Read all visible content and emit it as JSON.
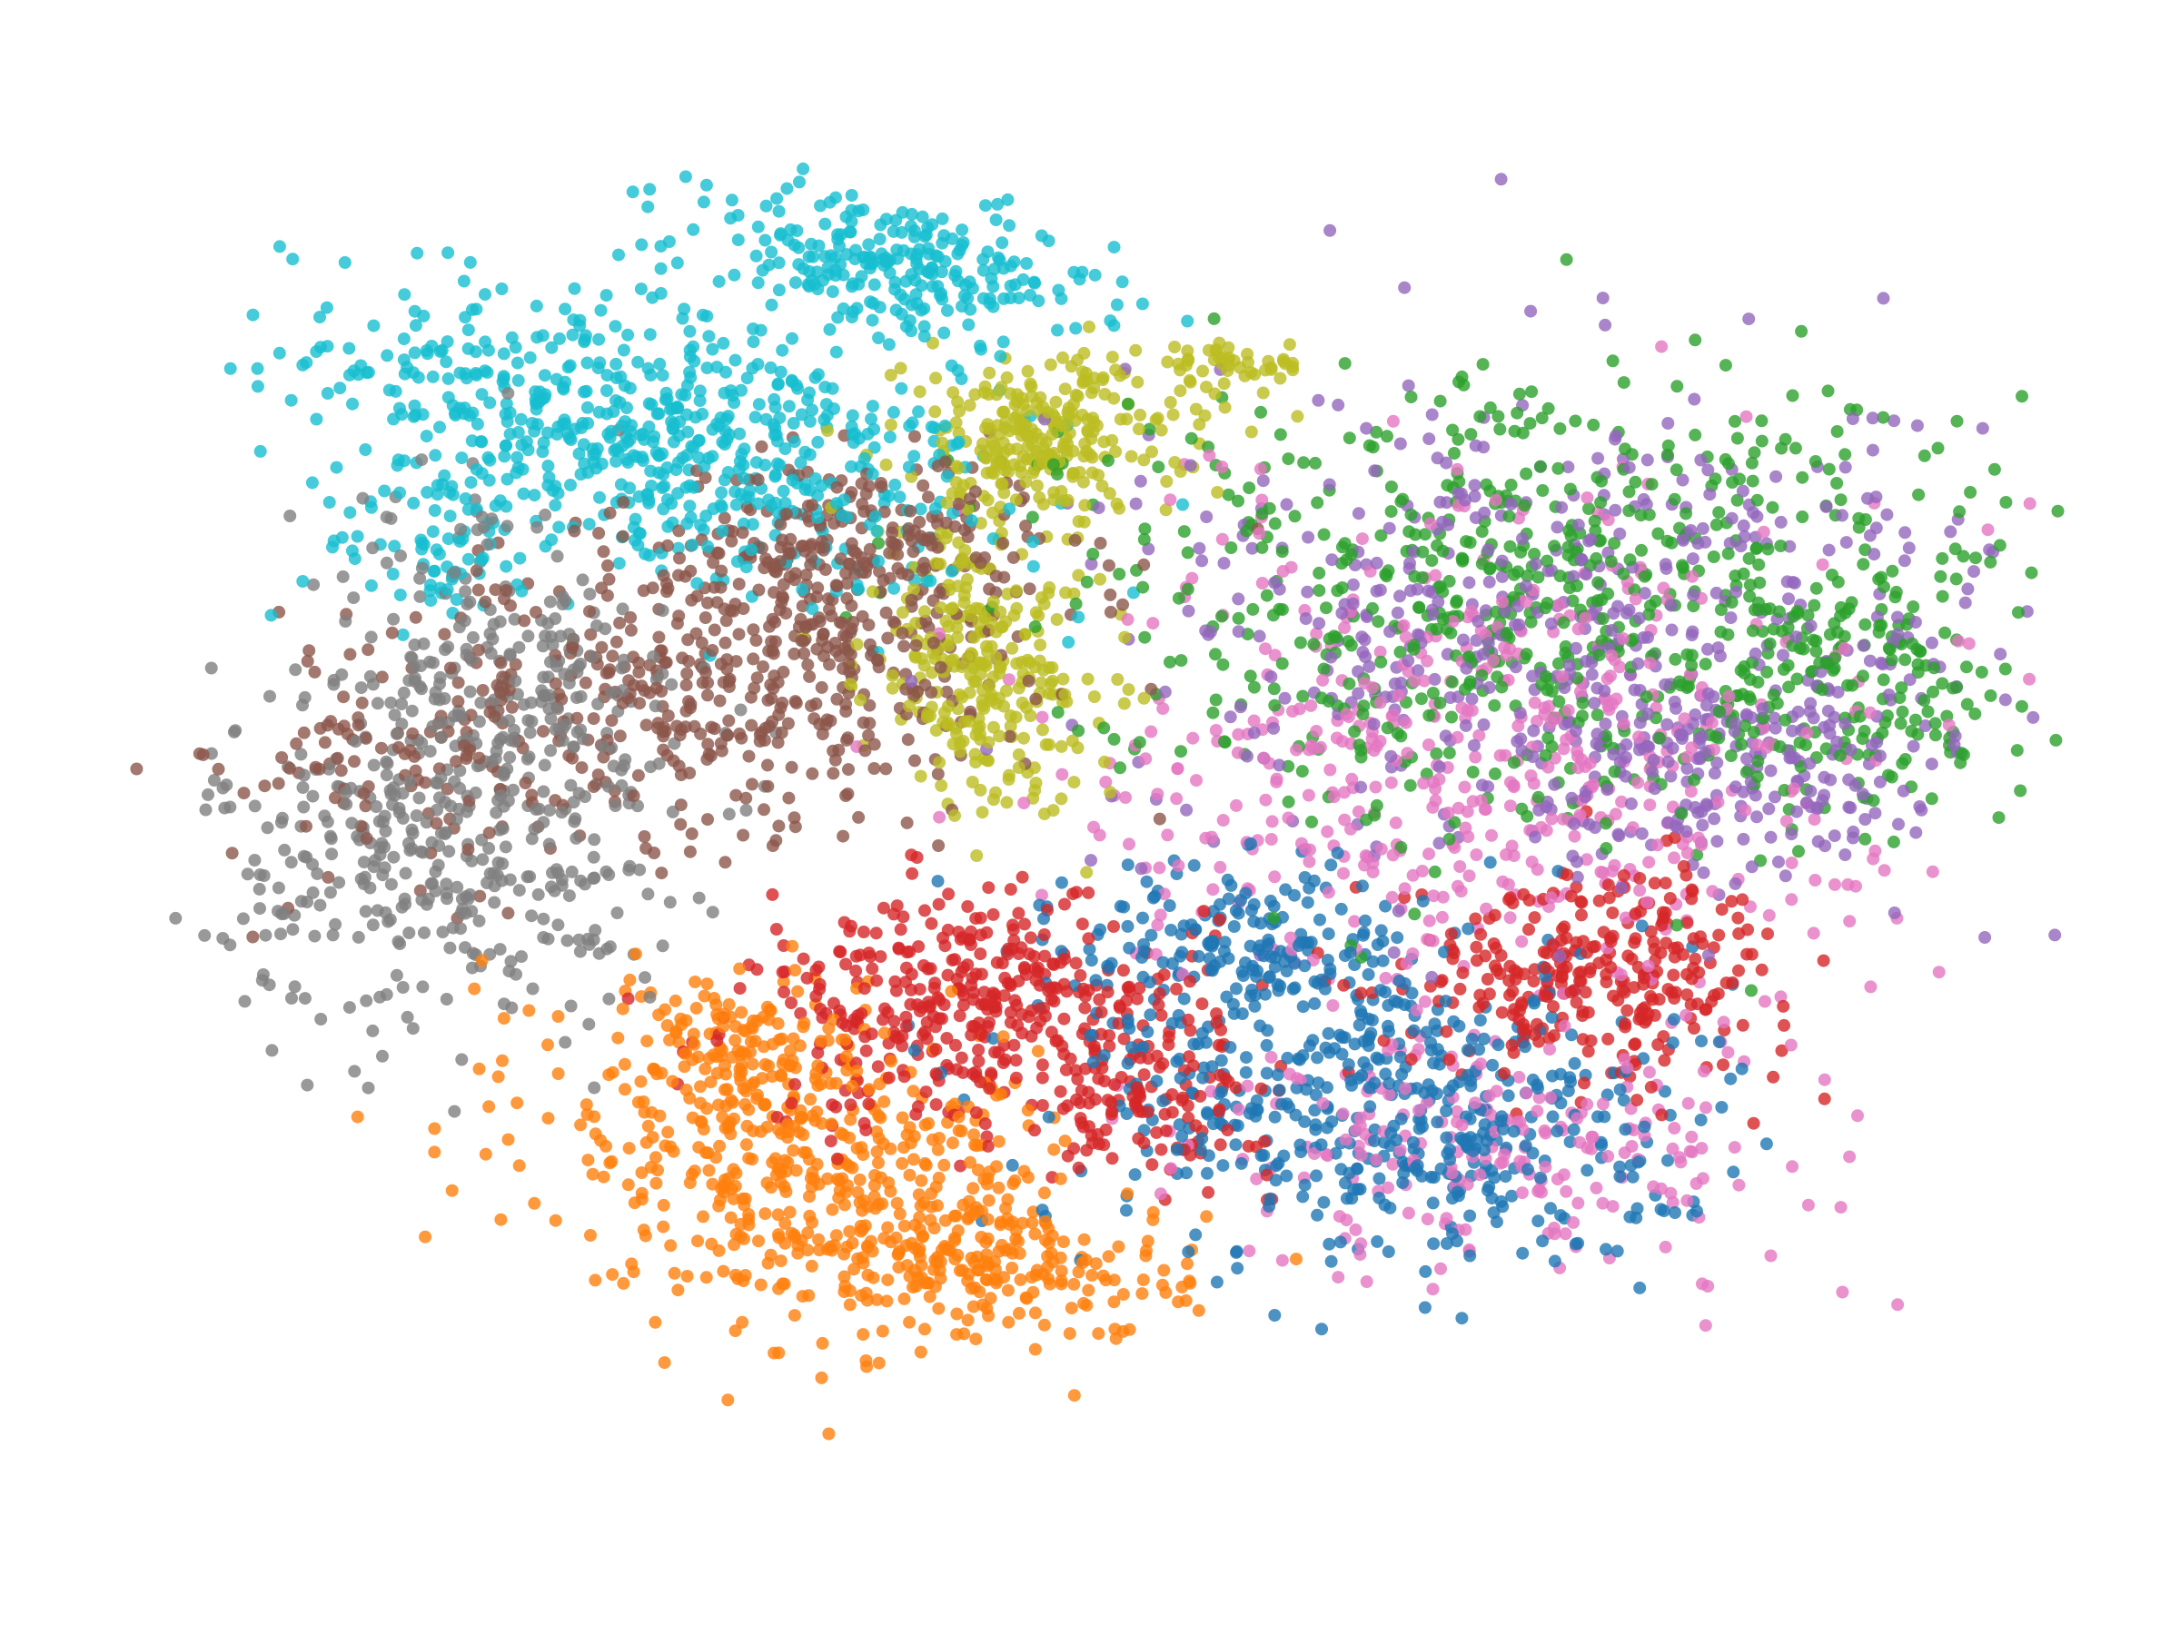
{
  "chart_data": {
    "type": "scatter",
    "title": "",
    "xlabel": "",
    "ylabel": "",
    "axes_visible": false,
    "grid": false,
    "legend": "none",
    "xlim": [
      0,
      100
    ],
    "ylim": [
      0,
      100
    ],
    "series": [
      {
        "color": "#17becf",
        "clusters": [
          {
            "cx": 27,
            "cy": 77,
            "sx": 9.0,
            "sy": 4.5,
            "rot": -22,
            "n": 620
          },
          {
            "cx": 39,
            "cy": 89,
            "sx": 5.5,
            "sy": 2.4,
            "rot": -12,
            "n": 260
          },
          {
            "cx": 16,
            "cy": 70,
            "sx": 3.0,
            "sy": 3.0,
            "rot": 0,
            "n": 70
          }
        ]
      },
      {
        "color": "#8c564b",
        "clusters": [
          {
            "cx": 31,
            "cy": 61,
            "sx": 9.0,
            "sy": 5.5,
            "rot": 15,
            "n": 560
          },
          {
            "cx": 38,
            "cy": 70,
            "sx": 4.2,
            "sy": 3.0,
            "rot": 0,
            "n": 170
          },
          {
            "cx": 12,
            "cy": 55,
            "sx": 4.0,
            "sy": 4.0,
            "rot": 0,
            "n": 60
          }
        ]
      },
      {
        "color": "#7f7f7f",
        "clusters": [
          {
            "cx": 16,
            "cy": 49,
            "sx": 6.0,
            "sy": 6.5,
            "rot": 0,
            "n": 420
          },
          {
            "cx": 21,
            "cy": 61,
            "sx": 4.0,
            "sy": 3.4,
            "rot": 0,
            "n": 130
          },
          {
            "cx": 16,
            "cy": 70,
            "sx": 2.5,
            "sy": 3.5,
            "rot": 0,
            "n": 40
          }
        ]
      },
      {
        "color": "#bcbd22",
        "clusters": [
          {
            "cx": 47,
            "cy": 77,
            "sx": 3.6,
            "sy": 2.8,
            "rot": 0,
            "n": 260
          },
          {
            "cx": 44,
            "cy": 61,
            "sx": 3.2,
            "sy": 4.8,
            "rot": 10,
            "n": 280
          },
          {
            "cx": 57,
            "cy": 82,
            "sx": 2.0,
            "sy": 1.0,
            "rot": 0,
            "n": 50
          }
        ]
      },
      {
        "color": "#ff7f0e",
        "clusters": [
          {
            "cx": 35,
            "cy": 26,
            "sx": 7.0,
            "sy": 4.8,
            "rot": -20,
            "n": 480
          },
          {
            "cx": 31,
            "cy": 35,
            "sx": 3.0,
            "sy": 2.6,
            "rot": 0,
            "n": 110
          },
          {
            "cx": 45,
            "cy": 19,
            "sx": 5.0,
            "sy": 2.4,
            "rot": 0,
            "n": 180
          }
        ]
      },
      {
        "color": "#d62728",
        "clusters": [
          {
            "cx": 44,
            "cy": 37,
            "sx": 6.0,
            "sy": 4.0,
            "rot": 0,
            "n": 420
          },
          {
            "cx": 76,
            "cy": 40,
            "sx": 5.0,
            "sy": 3.6,
            "rot": 0,
            "n": 300
          },
          {
            "cx": 53,
            "cy": 30,
            "sx": 3.0,
            "sy": 2.2,
            "rot": 0,
            "n": 90
          }
        ]
      },
      {
        "color": "#1f77b4",
        "clusters": [
          {
            "cx": 65,
            "cy": 30,
            "sx": 8.0,
            "sy": 5.5,
            "rot": -10,
            "n": 500
          },
          {
            "cx": 58,
            "cy": 42,
            "sx": 4.5,
            "sy": 3.0,
            "rot": 0,
            "n": 180
          }
        ]
      },
      {
        "color": "#2ca02c",
        "clusters": [
          {
            "cx": 72,
            "cy": 66,
            "sx": 12.0,
            "sy": 8.0,
            "rot": 0,
            "n": 650
          },
          {
            "cx": 89,
            "cy": 60,
            "sx": 4.0,
            "sy": 5.0,
            "rot": 0,
            "n": 160
          }
        ]
      },
      {
        "color": "#9467bd",
        "clusters": [
          {
            "cx": 76,
            "cy": 63,
            "sx": 12.0,
            "sy": 8.5,
            "rot": 0,
            "n": 560
          },
          {
            "cx": 83,
            "cy": 53,
            "sx": 5.0,
            "sy": 3.0,
            "rot": 0,
            "n": 120
          }
        ]
      },
      {
        "color": "#e377c2",
        "clusters": [
          {
            "cx": 70,
            "cy": 55,
            "sx": 10.0,
            "sy": 9.0,
            "rot": 0,
            "n": 520
          },
          {
            "cx": 72,
            "cy": 28,
            "sx": 8.0,
            "sy": 4.5,
            "rot": 0,
            "n": 220
          }
        ]
      }
    ]
  }
}
